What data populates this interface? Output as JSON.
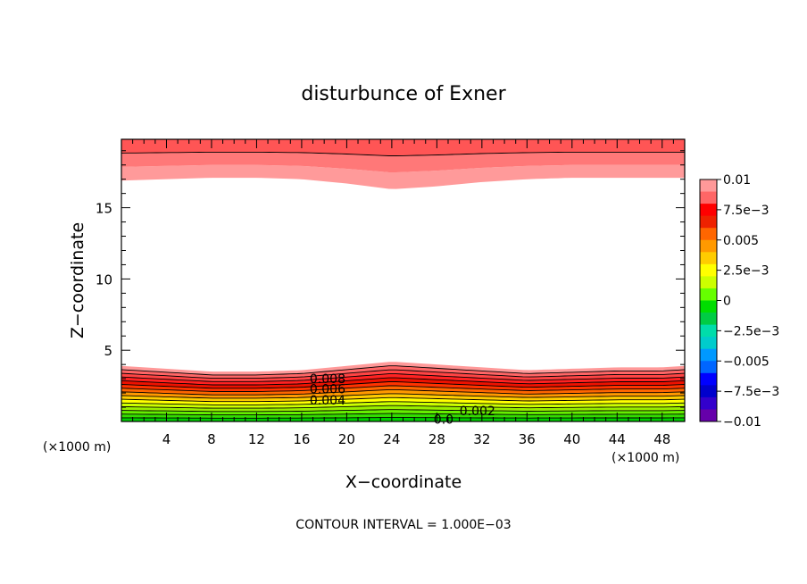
{
  "chart_data": {
    "type": "contour",
    "title": "disturbunce of Exner",
    "xlabel": "X−coordinate",
    "ylabel": "Z−coordinate",
    "x_unit_left": "(×1000 m)",
    "x_unit_right": "(×1000 m)",
    "xlim": [
      0,
      50
    ],
    "ylim": [
      0,
      19.8
    ],
    "x_ticks": [
      "4",
      "8",
      "12",
      "16",
      "20",
      "24",
      "28",
      "32",
      "36",
      "40",
      "44",
      "48"
    ],
    "y_ticks": [
      "5",
      "10",
      "15"
    ],
    "contour_interval_text": "CONTOUR INTERVAL = 1.000E−03",
    "contour_labels": [
      {
        "text": "0.008",
        "x": 18.3,
        "z": 3.0
      },
      {
        "text": "0.006",
        "x": 18.3,
        "z": 2.3
      },
      {
        "text": "0.004",
        "x": 18.3,
        "z": 1.5
      },
      {
        "text": "0.002",
        "x": 31.6,
        "z": 0.75
      },
      {
        "text": "0.0",
        "x": 28.6,
        "z": 0.15
      }
    ],
    "lower_band_top_z": {
      "x": [
        0,
        4,
        8,
        12,
        16,
        20,
        24,
        28,
        32,
        36,
        40,
        44,
        48,
        50
      ],
      "z": [
        3.9,
        3.7,
        3.5,
        3.5,
        3.6,
        3.9,
        4.2,
        4.0,
        3.8,
        3.6,
        3.7,
        3.8,
        3.8,
        3.9
      ]
    },
    "upper_band_bottom_z": {
      "x": [
        0,
        4,
        8,
        12,
        16,
        20,
        24,
        28,
        32,
        36,
        40,
        44,
        48,
        50
      ],
      "z": [
        16.9,
        17.0,
        17.1,
        17.1,
        17.0,
        16.7,
        16.3,
        16.5,
        16.8,
        17.0,
        17.1,
        17.1,
        17.1,
        17.1
      ]
    },
    "colorbar": {
      "labels": [
        "0.01",
        "7.5e−3",
        "0.005",
        "2.5e−3",
        "0",
        "−2.5e−3",
        "−0.005",
        "−7.5e−3",
        "−0.01"
      ],
      "colors_top_to_bottom": [
        "#ff9999",
        "#ff6666",
        "#ff0000",
        "#ee2200",
        "#ff6600",
        "#ff9900",
        "#ffcc00",
        "#ffff00",
        "#ccff00",
        "#66ff00",
        "#00dd00",
        "#00cc44",
        "#00ddaa",
        "#00cccc",
        "#0099ff",
        "#0066ff",
        "#0000ff",
        "#0000cc",
        "#3300cc",
        "#6600aa"
      ]
    },
    "band_colors_bottom_to_top": [
      "#00cc00",
      "#33dd00",
      "#66ee00",
      "#99ee00",
      "#ccff00",
      "#ffff00",
      "#ffcc00",
      "#ff9900",
      "#ff6600",
      "#ff3300",
      "#ee1100",
      "#ff2222",
      "#ff4444",
      "#ff6666",
      "#ff9999"
    ],
    "upper_band_colors": [
      "#ff9a9a",
      "#ff7878",
      "#ff5555"
    ]
  }
}
